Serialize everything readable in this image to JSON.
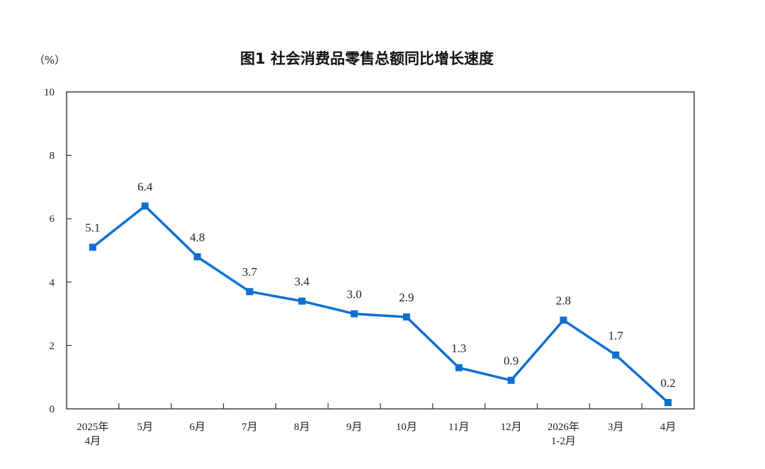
{
  "chart_data": {
    "type": "line",
    "title": "图1  社会消费品零售总额同比增长速度",
    "unit": "（%）",
    "categories": [
      "2025年\n4月",
      "5月",
      "6月",
      "7月",
      "8月",
      "9月",
      "10月",
      "11月",
      "12月",
      "2026年\n1-2月",
      "3月",
      "4月"
    ],
    "series": [
      {
        "values": [
          5.1,
          6.4,
          4.8,
          3.7,
          3.4,
          3.0,
          2.9,
          1.3,
          0.9,
          2.8,
          1.7,
          0.2
        ],
        "data_labels": [
          "5.1",
          "6.4",
          "4.8",
          "3.7",
          "3.4",
          "3.0",
          "2.9",
          "1.3",
          "0.9",
          "2.8",
          "1.7",
          "0.2"
        ],
        "color": "#0f6fd1"
      }
    ],
    "yticks": [
      "0",
      "2",
      "4",
      "6",
      "8",
      "10"
    ],
    "ylim": [
      0,
      10
    ],
    "grid": false,
    "legend": "none",
    "colors": {
      "line": "#0f6fd1",
      "axis": "#333333",
      "text": "#222222"
    }
  }
}
